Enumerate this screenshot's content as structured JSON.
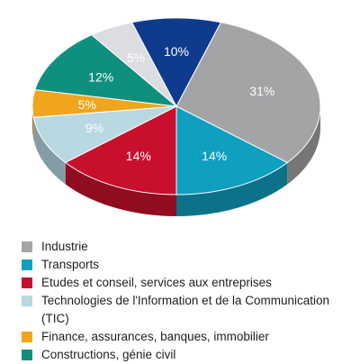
{
  "chart_data": {
    "type": "pie",
    "slices": [
      {
        "label": "Industrie",
        "value": 31,
        "value_label": "31%",
        "color": "#a3a4a6"
      },
      {
        "label": "Transports",
        "value": 14,
        "value_label": "14%",
        "color": "#0f9fbf"
      },
      {
        "label": "Etudes et conseil, services aux entreprises",
        "value": 14,
        "value_label": "14%",
        "color": "#c8102e"
      },
      {
        "label": "Technologies de l'Information et de la Communication (TIC)",
        "value": 9,
        "value_label": "9%",
        "color": "#b8d8e2"
      },
      {
        "label": "Finance, assurances, banques, immobilier",
        "value": 5,
        "value_label": "5%",
        "color": "#f0a51d"
      },
      {
        "label": "Constructions, génie civil",
        "value": 12,
        "value_label": "12%",
        "color": "#0f8f7e"
      },
      {
        "label": "",
        "value": 5,
        "value_label": "5%",
        "color": "#dcdde0"
      },
      {
        "label": "",
        "value": 10,
        "value_label": "10%",
        "color": "#0f3b8c"
      }
    ],
    "legend_placement": "bottom",
    "style": "3d-tilted"
  }
}
